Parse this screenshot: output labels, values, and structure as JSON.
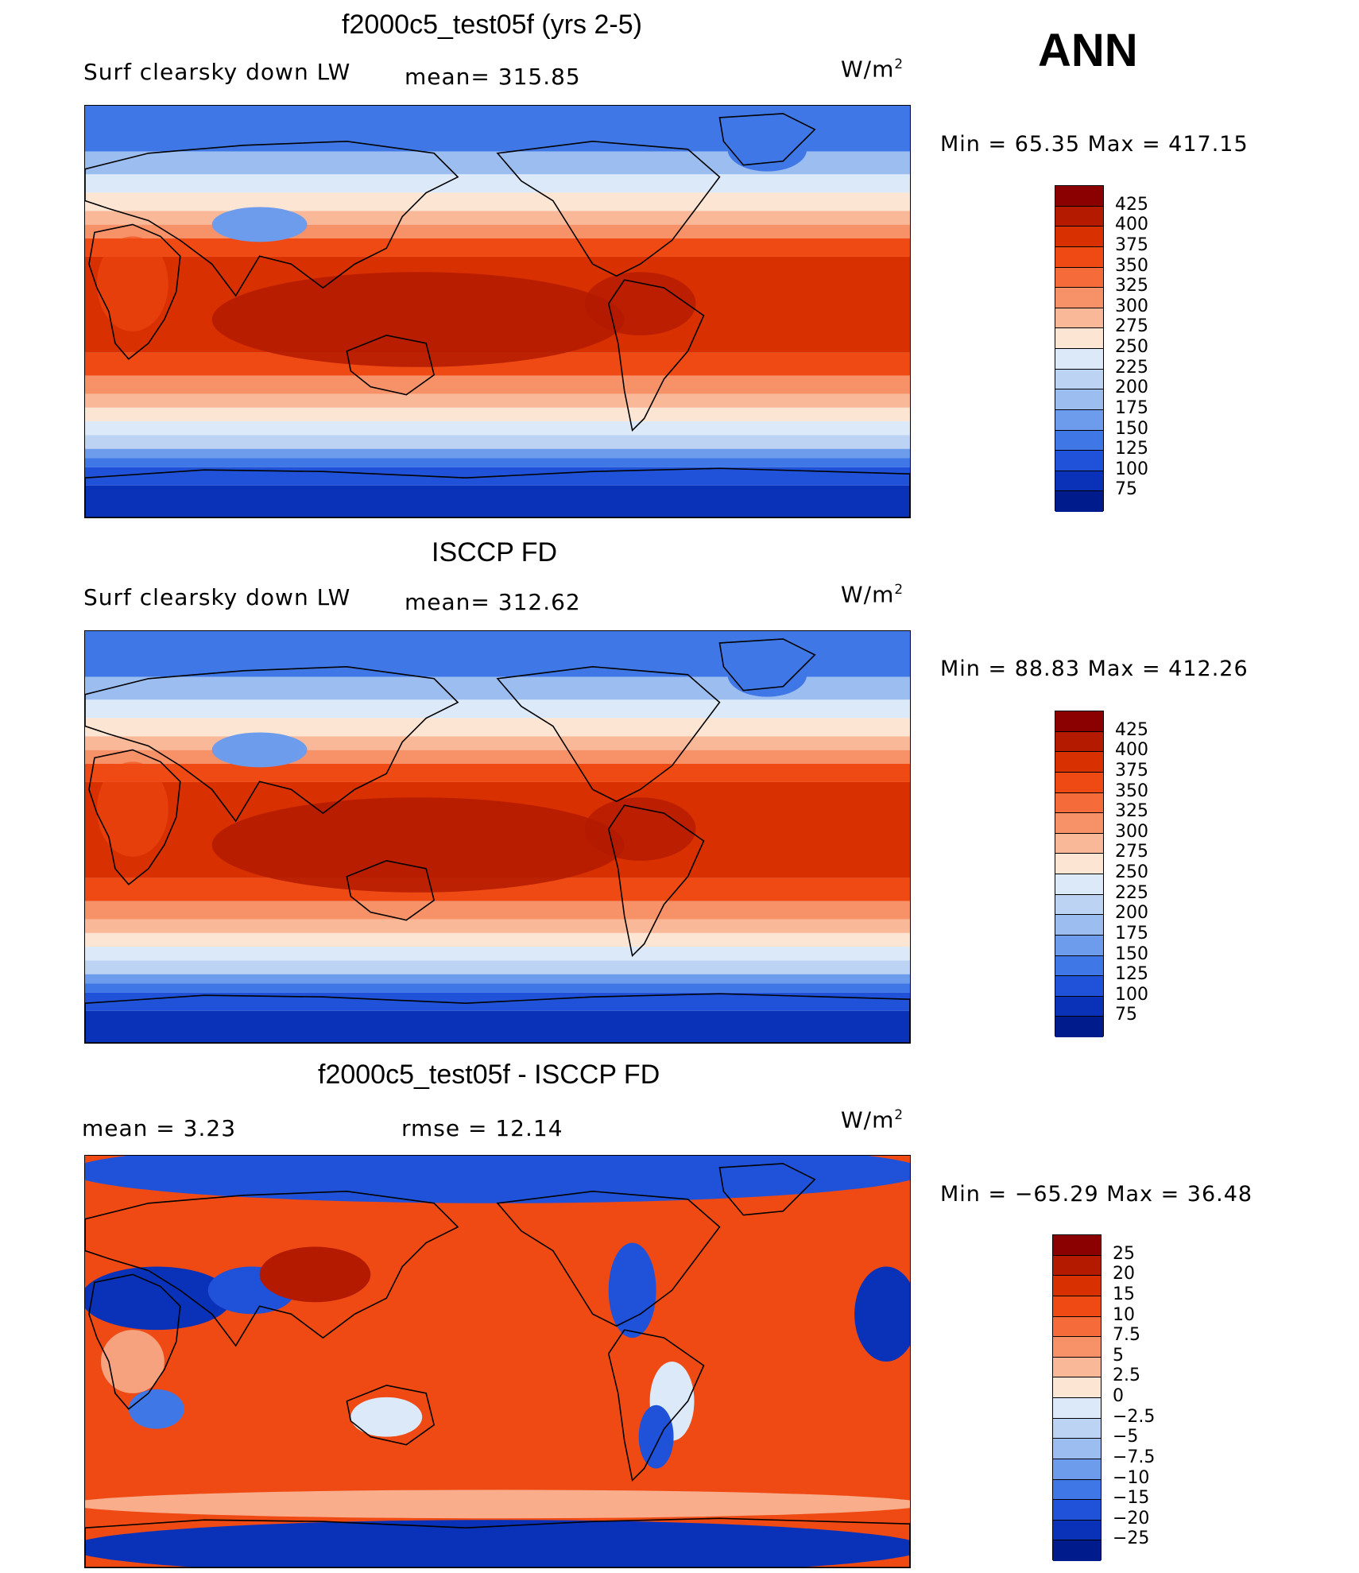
{
  "season": "ANN",
  "panels": [
    {
      "title": "f2000c5_test05f (yrs 2-5)",
      "left_label": "Surf clearsky down LW",
      "mid_label": "mean= 315.85",
      "units_base": "W/m",
      "units_exp": "2",
      "minmax": "Min =   65.35 Max = 417.15",
      "colorbar": {
        "labels": [
          "425",
          "400",
          "375",
          "350",
          "325",
          "300",
          "275",
          "250",
          "225",
          "200",
          "175",
          "150",
          "125",
          "100",
          "75"
        ],
        "colors": [
          "#8b0000",
          "#b31a00",
          "#d93000",
          "#ef4a14",
          "#f56b3a",
          "#f79168",
          "#f9b898",
          "#fde5d4",
          "#dbe9f8",
          "#bdd3f3",
          "#9bbdf0",
          "#6e9cec",
          "#3f78e6",
          "#1f52d9",
          "#0a32b8",
          "#001c8c"
        ]
      },
      "map_field": "positive"
    },
    {
      "title": "ISCCP FD",
      "left_label": "Surf clearsky down LW",
      "mid_label": "mean= 312.62",
      "units_base": "W/m",
      "units_exp": "2",
      "minmax": "Min =   88.83 Max = 412.26",
      "colorbar": {
        "labels": [
          "425",
          "400",
          "375",
          "350",
          "325",
          "300",
          "275",
          "250",
          "225",
          "200",
          "175",
          "150",
          "125",
          "100",
          "75"
        ],
        "colors": [
          "#8b0000",
          "#b31a00",
          "#d93000",
          "#ef4a14",
          "#f56b3a",
          "#f79168",
          "#f9b898",
          "#fde5d4",
          "#dbe9f8",
          "#bdd3f3",
          "#9bbdf0",
          "#6e9cec",
          "#3f78e6",
          "#1f52d9",
          "#0a32b8",
          "#001c8c"
        ]
      },
      "map_field": "positive"
    },
    {
      "title": "f2000c5_test05f - ISCCP FD",
      "left_label": "mean =     3.23",
      "mid_label": "rmse =     12.14",
      "units_base": "W/m",
      "units_exp": "2",
      "minmax": "Min = −65.29 Max =   36.48",
      "colorbar": {
        "labels": [
          "25",
          "20",
          "15",
          "10",
          "7.5",
          "5",
          "2.5",
          "0",
          "−2.5",
          "−5",
          "−7.5",
          "−10",
          "−15",
          "−20",
          "−25"
        ],
        "colors": [
          "#8b0000",
          "#b31a00",
          "#d93000",
          "#ef4a14",
          "#f56b3a",
          "#f79168",
          "#f9b898",
          "#fde5d4",
          "#dbe9f8",
          "#bdd3f3",
          "#9bbdf0",
          "#6e9cec",
          "#3f78e6",
          "#1f52d9",
          "#0a32b8",
          "#001c8c"
        ]
      },
      "map_field": "difference"
    }
  ]
}
